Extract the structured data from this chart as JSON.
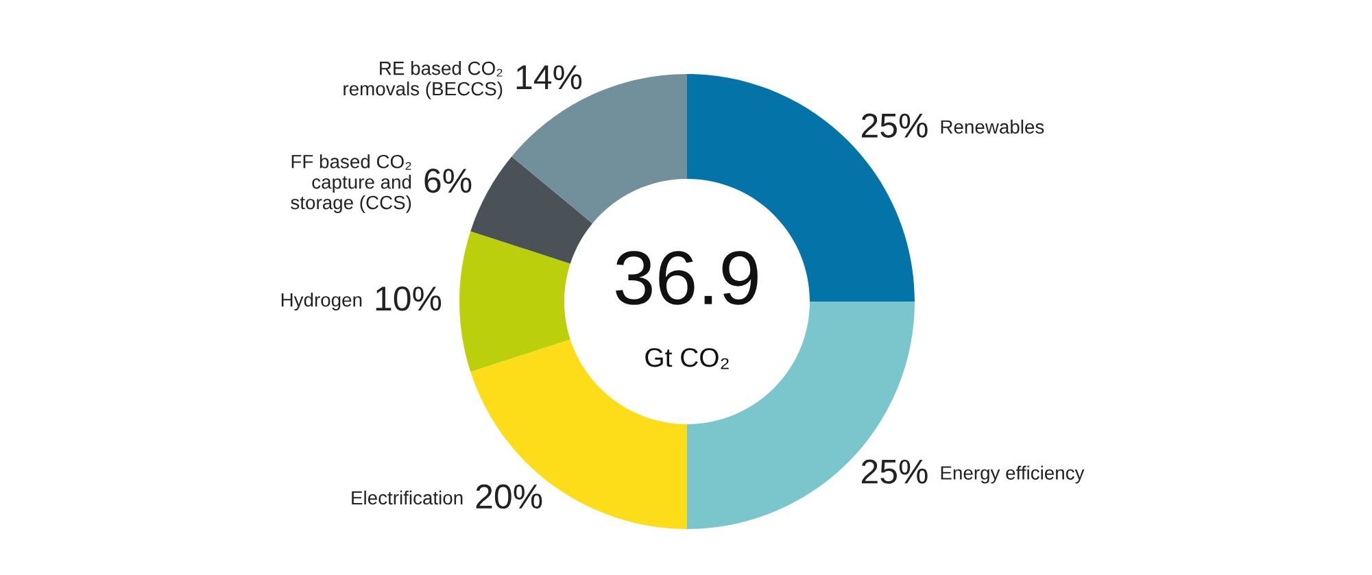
{
  "chart_data": {
    "type": "donut",
    "categories": [
      "Renewables",
      "Energy efficiency",
      "Electrification",
      "Hydrogen",
      "FF based CO₂\ncapture and\nstorage (CCS)",
      "RE based CO₂\nremovals (BECCS)"
    ],
    "values": [
      25,
      25,
      20,
      10,
      6,
      14
    ],
    "value_labels": [
      "25%",
      "25%",
      "20%",
      "10%",
      "6%",
      "14%"
    ],
    "colors": [
      "#0474a8",
      "#7ac6cc",
      "#fddd1a",
      "#bccf0c",
      "#4b5257",
      "#72909c"
    ],
    "annotations": [
      "36.9",
      "Gt CO₂"
    ],
    "legend": false
  }
}
